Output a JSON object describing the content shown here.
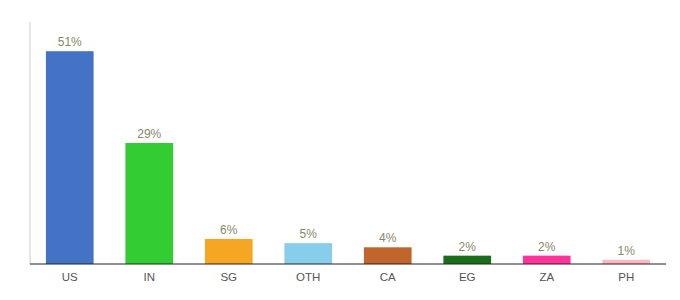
{
  "chart_data": {
    "type": "bar",
    "categories": [
      "US",
      "IN",
      "SG",
      "OTH",
      "CA",
      "EG",
      "ZA",
      "PH"
    ],
    "values": [
      51,
      29,
      6,
      5,
      4,
      2,
      2,
      1
    ],
    "value_labels": [
      "51%",
      "29%",
      "6%",
      "5%",
      "4%",
      "2%",
      "2%",
      "1%"
    ],
    "colors": [
      "#4472c4",
      "#33cc33",
      "#f5a623",
      "#87ceeb",
      "#c0652b",
      "#1a6e1a",
      "#ff3399",
      "#ffb6c1"
    ],
    "ylim": [
      0,
      58
    ],
    "data_labels": true,
    "tick_labels": "x",
    "grid": false
  }
}
